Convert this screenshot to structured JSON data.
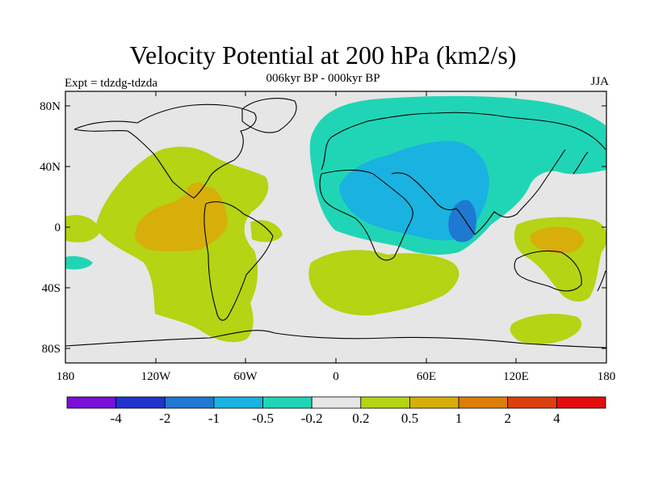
{
  "title": "Velocity Potential at 200 hPa (km2/s)",
  "subtitle": "006kyr BP - 000kyr BP",
  "left_label": "Expt = tdzdg-tdzda",
  "right_label": "JJA",
  "lat_ticks": [
    "80N",
    "40N",
    "0",
    "40S",
    "80S"
  ],
  "lon_ticks": [
    "180",
    "120W",
    "60W",
    "0",
    "60E",
    "120E",
    "180"
  ],
  "colorbar": {
    "colors": [
      "#7a10d8",
      "#2233cc",
      "#1f78d1",
      "#1ab2e0",
      "#20d5b5",
      "#e6e6e6",
      "#b4d414",
      "#d8ae0a",
      "#dc7e0a",
      "#dc4010",
      "#e30d0d"
    ],
    "labels": [
      "-4",
      "-2",
      "-1",
      "-0.5",
      "-0.2",
      "0.2",
      "0.5",
      "1",
      "2",
      "4"
    ]
  },
  "legend_colors": {
    "ocean_neutral": "#e6e6e6",
    "neg_weak": "#20d5b5",
    "neg_mid": "#1ab2e0",
    "neg_strong": "#1f78d1",
    "pos_weak": "#b4d414",
    "pos_mid": "#d8ae0a"
  }
}
